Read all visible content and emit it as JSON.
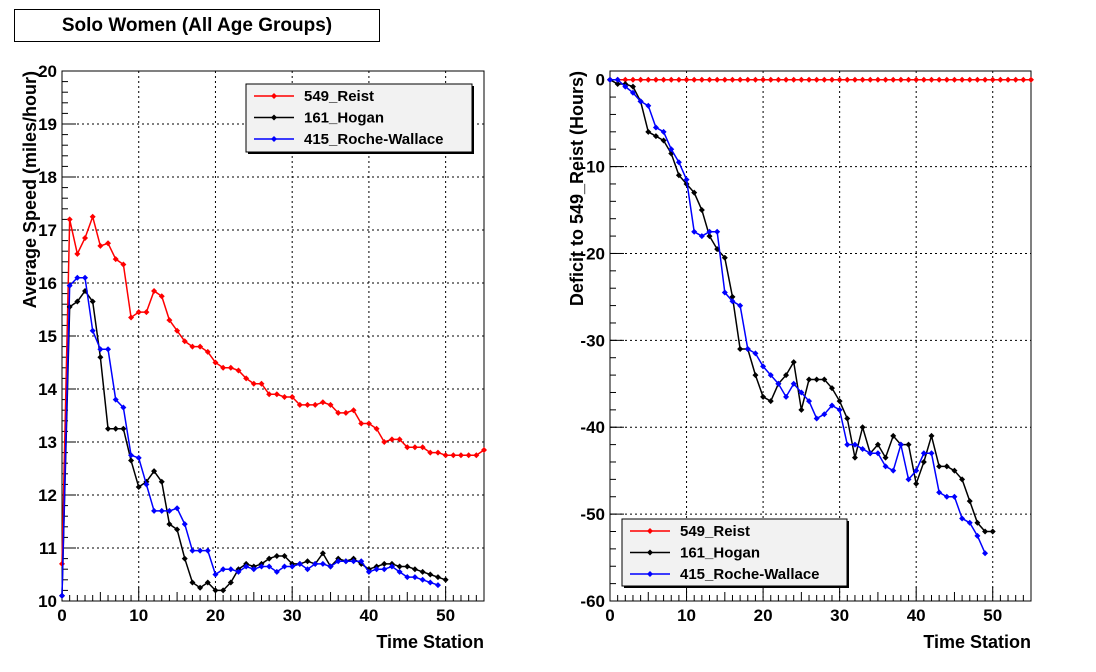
{
  "title": "Solo Women (All Age Groups)",
  "chart_data": [
    {
      "type": "line",
      "xlabel": "Time Station",
      "ylabel": "Average Speed (miles/hour)",
      "xlim": [
        0,
        55
      ],
      "ylim": [
        10,
        20
      ],
      "xticks": [
        0,
        10,
        20,
        30,
        40,
        50
      ],
      "yticks": [
        10,
        11,
        12,
        13,
        14,
        15,
        16,
        17,
        18,
        19,
        20
      ],
      "grid": true,
      "legend_position": "top-right",
      "series": [
        {
          "name": "549_Reist",
          "color": "#ff0000",
          "x": [
            0,
            1,
            2,
            3,
            4,
            5,
            6,
            7,
            8,
            9,
            10,
            11,
            12,
            13,
            14,
            15,
            16,
            17,
            18,
            19,
            20,
            21,
            22,
            23,
            24,
            25,
            26,
            27,
            28,
            29,
            30,
            31,
            32,
            33,
            34,
            35,
            36,
            37,
            38,
            39,
            40,
            41,
            42,
            43,
            44,
            45,
            46,
            47,
            48,
            49,
            50,
            51,
            52,
            53,
            54,
            55
          ],
          "y": [
            10.7,
            17.2,
            16.55,
            16.85,
            17.25,
            16.7,
            16.75,
            16.45,
            16.35,
            15.35,
            15.45,
            15.45,
            15.85,
            15.75,
            15.3,
            15.1,
            14.9,
            14.8,
            14.8,
            14.7,
            14.5,
            14.4,
            14.4,
            14.35,
            14.2,
            14.1,
            14.1,
            13.9,
            13.9,
            13.85,
            13.85,
            13.7,
            13.7,
            13.7,
            13.75,
            13.7,
            13.55,
            13.55,
            13.6,
            13.35,
            13.35,
            13.25,
            13.0,
            13.05,
            13.05,
            12.9,
            12.9,
            12.9,
            12.8,
            12.8,
            12.75,
            12.75,
            12.75,
            12.75,
            12.75,
            12.85
          ]
        },
        {
          "name": "161_Hogan",
          "color": "#000000",
          "x": [
            0,
            1,
            2,
            3,
            4,
            5,
            6,
            7,
            8,
            9,
            10,
            11,
            12,
            13,
            14,
            15,
            16,
            17,
            18,
            19,
            20,
            21,
            22,
            23,
            24,
            25,
            26,
            27,
            28,
            29,
            30,
            31,
            32,
            33,
            34,
            35,
            36,
            37,
            38,
            39,
            40,
            41,
            42,
            43,
            44,
            45,
            46,
            47,
            48,
            49,
            50
          ],
          "y": [
            10.1,
            15.55,
            15.65,
            15.85,
            15.65,
            14.6,
            13.25,
            13.25,
            13.25,
            12.65,
            12.15,
            12.25,
            12.45,
            12.25,
            11.45,
            11.35,
            10.8,
            10.35,
            10.25,
            10.35,
            10.2,
            10.2,
            10.35,
            10.6,
            10.7,
            10.65,
            10.7,
            10.8,
            10.85,
            10.85,
            10.7,
            10.7,
            10.75,
            10.7,
            10.9,
            10.65,
            10.8,
            10.75,
            10.8,
            10.7,
            10.6,
            10.65,
            10.7,
            10.7,
            10.65,
            10.65,
            10.6,
            10.55,
            10.5,
            10.45,
            10.4
          ]
        },
        {
          "name": "415_Roche-Wallace",
          "color": "#0000ff",
          "x": [
            0,
            1,
            2,
            3,
            4,
            5,
            6,
            7,
            8,
            9,
            10,
            11,
            12,
            13,
            14,
            15,
            16,
            17,
            18,
            19,
            20,
            21,
            22,
            23,
            24,
            25,
            26,
            27,
            28,
            29,
            30,
            31,
            32,
            33,
            34,
            35,
            36,
            37,
            38,
            39,
            40,
            41,
            42,
            43,
            44,
            45,
            46,
            47,
            48,
            49
          ],
          "y": [
            10.1,
            15.95,
            16.1,
            16.1,
            15.1,
            14.75,
            14.75,
            13.8,
            13.65,
            12.75,
            12.7,
            12.2,
            11.7,
            11.7,
            11.7,
            11.75,
            11.45,
            10.95,
            10.95,
            10.95,
            10.5,
            10.6,
            10.6,
            10.55,
            10.65,
            10.6,
            10.65,
            10.65,
            10.55,
            10.65,
            10.65,
            10.7,
            10.6,
            10.7,
            10.7,
            10.65,
            10.75,
            10.75,
            10.75,
            10.75,
            10.55,
            10.6,
            10.6,
            10.65,
            10.55,
            10.45,
            10.45,
            10.4,
            10.35,
            10.3
          ]
        }
      ]
    },
    {
      "type": "line",
      "xlabel": "Time Station",
      "ylabel": "Deficit to 549_Reist (Hours)",
      "xlim": [
        0,
        55
      ],
      "ylim": [
        -60,
        1
      ],
      "xticks": [
        0,
        10,
        20,
        30,
        40,
        50
      ],
      "yticks": [
        0,
        -10,
        -20,
        -30,
        -40,
        -50,
        -60
      ],
      "grid": true,
      "legend_position": "bottom-left",
      "series": [
        {
          "name": "549_Reist",
          "color": "#ff0000",
          "x": [
            0,
            1,
            2,
            3,
            4,
            5,
            6,
            7,
            8,
            9,
            10,
            11,
            12,
            13,
            14,
            15,
            16,
            17,
            18,
            19,
            20,
            21,
            22,
            23,
            24,
            25,
            26,
            27,
            28,
            29,
            30,
            31,
            32,
            33,
            34,
            35,
            36,
            37,
            38,
            39,
            40,
            41,
            42,
            43,
            44,
            45,
            46,
            47,
            48,
            49,
            50,
            51,
            52,
            53,
            54,
            55
          ],
          "y": [
            0,
            0,
            0,
            0,
            0,
            0,
            0,
            0,
            0,
            0,
            0,
            0,
            0,
            0,
            0,
            0,
            0,
            0,
            0,
            0,
            0,
            0,
            0,
            0,
            0,
            0,
            0,
            0,
            0,
            0,
            0,
            0,
            0,
            0,
            0,
            0,
            0,
            0,
            0,
            0,
            0,
            0,
            0,
            0,
            0,
            0,
            0,
            0,
            0,
            0,
            0,
            0,
            0,
            0,
            0,
            0
          ]
        },
        {
          "name": "161_Hogan",
          "color": "#000000",
          "x": [
            0,
            1,
            2,
            3,
            4,
            5,
            6,
            7,
            8,
            9,
            10,
            11,
            12,
            13,
            14,
            15,
            16,
            17,
            18,
            19,
            20,
            21,
            22,
            23,
            24,
            25,
            26,
            27,
            28,
            29,
            30,
            31,
            32,
            33,
            34,
            35,
            36,
            37,
            38,
            39,
            40,
            41,
            42,
            43,
            44,
            45,
            46,
            47,
            48,
            49,
            50
          ],
          "y": [
            0,
            -0.5,
            -0.5,
            -0.8,
            -2.5,
            -6,
            -6.5,
            -7,
            -8.5,
            -11,
            -12,
            -13,
            -15,
            -18,
            -19.5,
            -20.5,
            -25,
            -31,
            -31,
            -34,
            -36.5,
            -37,
            -35,
            -34,
            -32.5,
            -38,
            -34.5,
            -34.5,
            -34.5,
            -35.5,
            -37,
            -39,
            -43.5,
            -40,
            -43,
            -42,
            -43.5,
            -41,
            -42,
            -42,
            -46.5,
            -44,
            -41,
            -44.5,
            -44.5,
            -45,
            -46,
            -48.5,
            -51,
            -52,
            -52
          ]
        },
        {
          "name": "415_Roche-Wallace",
          "color": "#0000ff",
          "x": [
            0,
            1,
            2,
            3,
            4,
            5,
            6,
            7,
            8,
            9,
            10,
            11,
            12,
            13,
            14,
            15,
            16,
            17,
            18,
            19,
            20,
            21,
            22,
            23,
            24,
            25,
            26,
            27,
            28,
            29,
            30,
            31,
            32,
            33,
            34,
            35,
            36,
            37,
            38,
            39,
            40,
            41,
            42,
            43,
            44,
            45,
            46,
            47,
            48,
            49
          ],
          "y": [
            0,
            0,
            -0.8,
            -1.5,
            -2.5,
            -3,
            -5.5,
            -6,
            -8,
            -9.5,
            -11.5,
            -17.5,
            -18,
            -17.5,
            -17.5,
            -24.5,
            -25.5,
            -26,
            -31,
            -31.5,
            -33,
            -34,
            -35,
            -36.5,
            -35,
            -36,
            -37,
            -39,
            -38.5,
            -37.5,
            -38,
            -42,
            -42,
            -42.5,
            -43,
            -43,
            -44.5,
            -45,
            -42,
            -46,
            -45,
            -43,
            -43,
            -47.5,
            -48,
            -48,
            -50.5,
            -51,
            -52.5,
            -54.5
          ]
        }
      ]
    }
  ]
}
